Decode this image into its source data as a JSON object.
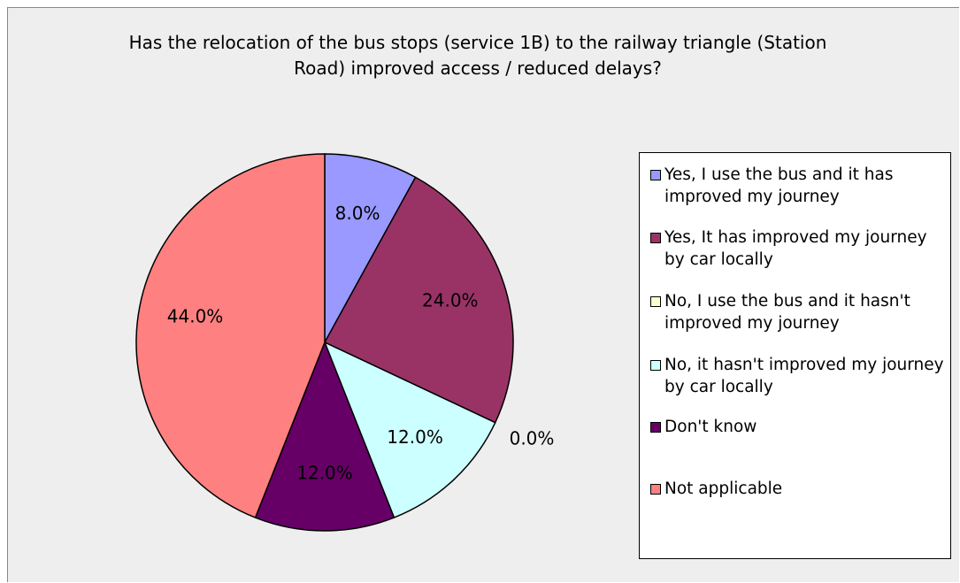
{
  "chart_data": {
    "type": "pie",
    "title": "Has the relocation of the bus stops (service 1B) to the railway triangle (Station Road) improved access / reduced delays?",
    "categories": [
      "Yes, I use the bus and it has improved my journey",
      "Yes, It has improved my journey by car locally",
      "No, I use the bus and it hasn't improved my journey",
      "No, it hasn't improved my journey by car locally",
      "Don't know",
      "Not applicable"
    ],
    "values": [
      8,
      24,
      0,
      12,
      12,
      44
    ],
    "value_labels": [
      "8.0%",
      "24.0%",
      "0.0%",
      "12.0%",
      "12.0%",
      "44.0%"
    ],
    "colors": [
      "#9999ff",
      "#993366",
      "#ffffcc",
      "#ccffff",
      "#660066",
      "#ff8080"
    ],
    "legend": "right"
  }
}
